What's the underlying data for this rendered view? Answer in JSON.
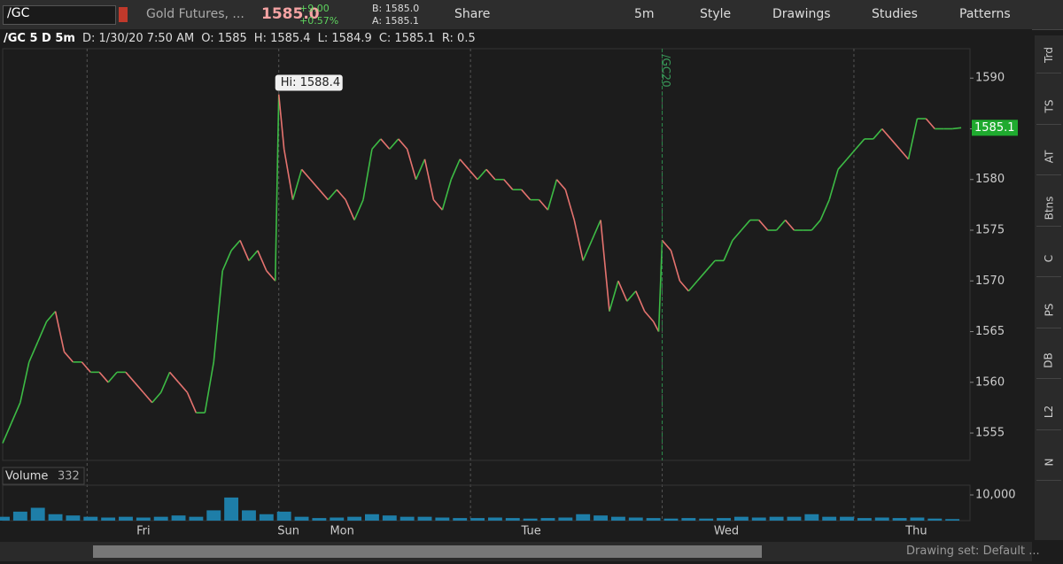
{
  "toolbar": {
    "symbol": "/GC",
    "description": "Gold Futures, ...",
    "last": "1585.0",
    "change": "+9.00",
    "change_pct": "+0.57%",
    "bid": "B: 1585.0",
    "ask": "A: 1585.1",
    "share": "Share",
    "interval": "5m",
    "style": "Style",
    "drawings": "Drawings",
    "studies": "Studies",
    "patterns": "Patterns"
  },
  "header": {
    "symbol_period": "/GC 5 D 5m",
    "date": "D: 1/30/20 7:50 AM",
    "open": "O: 1585",
    "high": "H: 1585.4",
    "low": "L: 1584.9",
    "close": "C: 1585.1",
    "range": "R: 0.5"
  },
  "side_tabs": [
    "Trd",
    "TS",
    "AT",
    "Btns",
    "C",
    "PS",
    "DB",
    "L2",
    "N"
  ],
  "status": {
    "drawing_set": "Drawing set: Default ..."
  },
  "chart_data": [
    {
      "type": "line",
      "up_color": "#3dbb45",
      "down_color": "#e5736f",
      "x": [
        0,
        1,
        2,
        3,
        4,
        5,
        6,
        7,
        8,
        9,
        10,
        11,
        12,
        13,
        14,
        15,
        16,
        17,
        18,
        19,
        20,
        21,
        22,
        23,
        24,
        25,
        26,
        27,
        28,
        29,
        30,
        31,
        31.4,
        32,
        33,
        34,
        35,
        36,
        37,
        38,
        39,
        40,
        41,
        42,
        43,
        44,
        45,
        46,
        47,
        48,
        49,
        50,
        51,
        52,
        53,
        54,
        55,
        56,
        57,
        58,
        59,
        60,
        61,
        62,
        63,
        64,
        65,
        66,
        67,
        68,
        69,
        70,
        71,
        72,
        73,
        74,
        74.6,
        75,
        76,
        77,
        78,
        79,
        80,
        81,
        82,
        83,
        84,
        85,
        86,
        87,
        88,
        89,
        90,
        91,
        92,
        93,
        94,
        95,
        96,
        97,
        98,
        99,
        100,
        101,
        102,
        103,
        104,
        105,
        106,
        107,
        108,
        109
      ],
      "values": [
        1554,
        1556,
        1558,
        1562,
        1564,
        1566,
        1567,
        1563,
        1562,
        1562,
        1561,
        1561,
        1560,
        1561,
        1561,
        1560,
        1559,
        1558,
        1559,
        1561,
        1560,
        1559,
        1557,
        1557,
        1562,
        1571,
        1573,
        1574,
        1572,
        1573,
        1571,
        1570,
        1588.4,
        1583,
        1578,
        1581,
        1580,
        1579,
        1578,
        1579,
        1578,
        1576,
        1578,
        1583,
        1584,
        1583,
        1584,
        1583,
        1580,
        1582,
        1578,
        1577,
        1580,
        1582,
        1581,
        1580,
        1581,
        1580,
        1580,
        1579,
        1579,
        1578,
        1578,
        1577,
        1580,
        1579,
        1576,
        1572,
        1574,
        1576,
        1567,
        1570,
        1568,
        1569,
        1567,
        1566,
        1565,
        1574,
        1573,
        1570,
        1569,
        1570,
        1571,
        1572,
        1572,
        1574,
        1575,
        1576,
        1576,
        1575,
        1575,
        1576,
        1575,
        1575,
        1575,
        1576,
        1578,
        1581,
        1582,
        1583,
        1584,
        1584,
        1585,
        1584,
        1583,
        1582,
        1586,
        1586,
        1585,
        1585,
        1585,
        1585.1
      ],
      "xlim": [
        0,
        110
      ],
      "ylim": [
        1552.3,
        1592.9
      ],
      "yticks": [
        1555,
        1560,
        1565,
        1570,
        1575,
        1580,
        1585,
        1590
      ],
      "session_breaks": [
        9.6,
        31.4,
        53.2,
        75.0,
        96.8
      ],
      "last_value": 1585.1,
      "annotations": [
        {
          "text": "Hi: 1588.4",
          "x": 31.4,
          "y": 1588.4
        },
        {
          "text": "/GC20",
          "x": 75.0
        }
      ]
    },
    {
      "type": "bar",
      "title": "Volume",
      "value_label": "332",
      "color": "#1e7ea8",
      "x": [
        0,
        2,
        4,
        6,
        8,
        10,
        12,
        14,
        16,
        18,
        20,
        22,
        24,
        26,
        28,
        30,
        32,
        34,
        36,
        38,
        40,
        42,
        44,
        46,
        48,
        50,
        52,
        54,
        56,
        58,
        60,
        62,
        64,
        66,
        68,
        70,
        72,
        74,
        76,
        78,
        80,
        82,
        84,
        86,
        88,
        90,
        92,
        94,
        96,
        98,
        100,
        102,
        104,
        106,
        108
      ],
      "values": [
        1500,
        3500,
        5000,
        2500,
        2000,
        1500,
        1200,
        1500,
        1200,
        1500,
        2000,
        1500,
        4000,
        9000,
        4000,
        2500,
        3500,
        1500,
        1000,
        1200,
        1500,
        2500,
        2000,
        1500,
        1500,
        1200,
        1000,
        1000,
        1200,
        1000,
        800,
        1000,
        1200,
        2500,
        2000,
        1500,
        1200,
        1000,
        800,
        1000,
        800,
        1000,
        1500,
        1200,
        1500,
        1500,
        2500,
        1500,
        1500,
        1000,
        1200,
        1000,
        1200,
        800,
        600
      ],
      "xlim": [
        0,
        110
      ],
      "ylim": [
        0,
        13800
      ],
      "yticks": [
        {
          "value": 10000,
          "label": "10,000"
        }
      ],
      "xticks": [
        {
          "value": 16.0,
          "label": "Fri"
        },
        {
          "value": 32.5,
          "label": "Sun"
        },
        {
          "value": 38.6,
          "label": "Mon"
        },
        {
          "value": 60.1,
          "label": "Tue"
        },
        {
          "value": 82.3,
          "label": "Wed"
        },
        {
          "value": 103.9,
          "label": "Thu"
        }
      ]
    }
  ]
}
